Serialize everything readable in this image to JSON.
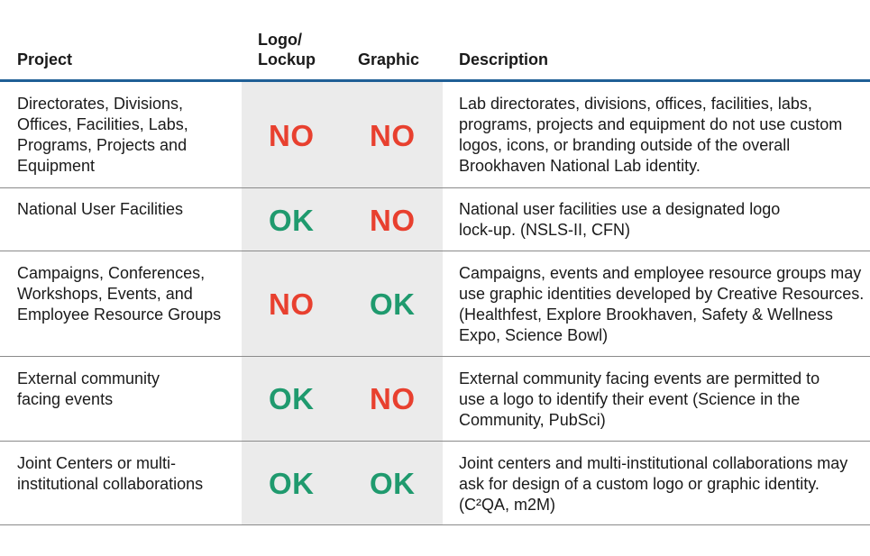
{
  "colors": {
    "header_rule": "#1f5f96",
    "no": "#e8402f",
    "ok": "#1f9a6e",
    "shade": "#ebebeb"
  },
  "headers": {
    "project": "Project",
    "logo_line1": "Logo/",
    "logo_line2": "Lockup",
    "graphic": "Graphic",
    "description": "Description"
  },
  "rows": [
    {
      "project": "Directorates, Divisions, Offices, Facilities, Labs, Programs, Projects and Equipment",
      "logo": "NO",
      "graphic": "NO",
      "description": "Lab directorates, divisions, offices, facilities, labs, programs, projects and equipment do not use custom logos, icons, or branding outside of the overall Brookhaven National Lab identity."
    },
    {
      "project": "National User Facilities",
      "logo": "OK",
      "graphic": "NO",
      "description": "National user facilities use a designated logo lock-up. (NSLS-II, CFN)"
    },
    {
      "project": "Campaigns, Conferences, Workshops, Events, and Employee Resource Groups",
      "logo": "NO",
      "graphic": "OK",
      "description": "Campaigns, events and employee resource groups may use graphic identities developed by Creative Resources. (Healthfest, Explore Brookhaven, Safety & Wellness Expo, Science Bowl)"
    },
    {
      "project": "External community facing events",
      "logo": "OK",
      "graphic": "NO",
      "description": "External community facing events are permitted to use a logo to identify their event (Science in the Community, PubSci)"
    },
    {
      "project": "Joint Centers or multi-institutional collaborations",
      "logo": "OK",
      "graphic": "OK",
      "description": "Joint centers and multi-institutional collaborations may ask for design of a custom logo or graphic identity. (C²QA, m2M)"
    }
  ]
}
